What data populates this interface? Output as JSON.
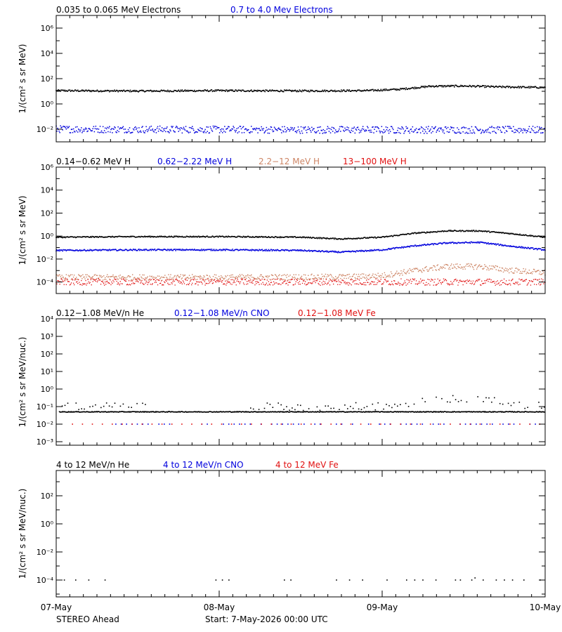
{
  "colors": {
    "black": "#000000",
    "blue": "#0000dd",
    "tan": "#cd8565",
    "red": "#e01010"
  },
  "footer": {
    "left": "STEREO Ahead",
    "start": "Start:  7-May-2026 00:00 UTC"
  },
  "x_axis": {
    "ticks": [
      "07-May",
      "08-May",
      "09-May",
      "10-May"
    ],
    "range_days": [
      0,
      3
    ]
  },
  "chart_data": [
    {
      "type": "scatter",
      "ylabel": "1/(cm² s sr MeV)",
      "yscale": "log",
      "ylim_exp": [
        -3,
        7
      ],
      "yticks": [
        {
          "exp": -2,
          "label": "10⁻²"
        },
        {
          "exp": 0,
          "label": "10⁰"
        },
        {
          "exp": 2,
          "label": "10²"
        },
        {
          "exp": 4,
          "label": "10⁴"
        },
        {
          "exp": 6,
          "label": "10⁶"
        }
      ],
      "legend": [
        {
          "name": "0.035 to 0.065 MeV Electrons",
          "color": "#000000"
        },
        {
          "name": "0.7 to 4.0 Mev Electrons",
          "color": "#0000dd"
        }
      ],
      "series": [
        {
          "name": "0.035 to 0.065 MeV Electrons",
          "color": "#000000",
          "style": "dense",
          "size": 1.6,
          "x_days": [
            0,
            0.5,
            1.0,
            1.5,
            1.9,
            2.1,
            2.3,
            2.5,
            2.7,
            3.0
          ],
          "y_log10": [
            1.05,
            1.02,
            1.05,
            1.03,
            1.05,
            1.15,
            1.4,
            1.42,
            1.35,
            1.3
          ],
          "jitter": 0.07
        },
        {
          "name": "0.7 to 4.0 Mev Electrons",
          "color": "#0000dd",
          "style": "dense",
          "size": 1.5,
          "x_days": [
            0,
            1.5,
            3.0
          ],
          "y_log10": [
            -2.0,
            -2.05,
            -2.05
          ],
          "jitter": 0.28
        }
      ]
    },
    {
      "type": "scatter",
      "ylabel": "1/(cm² s sr MeV)",
      "yscale": "log",
      "ylim_exp": [
        -5,
        6
      ],
      "yticks": [
        {
          "exp": -4,
          "label": "10⁻⁴"
        },
        {
          "exp": -2,
          "label": "10⁻²"
        },
        {
          "exp": 0,
          "label": "10⁰"
        },
        {
          "exp": 2,
          "label": "10²"
        },
        {
          "exp": 4,
          "label": "10⁴"
        },
        {
          "exp": 6,
          "label": "10⁶"
        }
      ],
      "legend": [
        {
          "name": "0.14−0.62 MeV H",
          "color": "#000000"
        },
        {
          "name": "0.62−2.22 MeV H",
          "color": "#0000dd"
        },
        {
          "name": "2.2−12 MeV H",
          "color": "#cd8565"
        },
        {
          "name": "13−100 MeV H",
          "color": "#e01010"
        }
      ],
      "series": [
        {
          "name": "0.14−0.62 MeV H",
          "color": "#000000",
          "style": "dense",
          "size": 1.6,
          "x_days": [
            0,
            0.5,
            1.0,
            1.5,
            1.75,
            2.0,
            2.2,
            2.4,
            2.6,
            2.8,
            3.0
          ],
          "y_log10": [
            -0.1,
            -0.05,
            -0.05,
            -0.1,
            -0.25,
            -0.1,
            0.25,
            0.45,
            0.45,
            0.2,
            -0.1
          ],
          "jitter": 0.05
        },
        {
          "name": "0.62−2.22 MeV H",
          "color": "#0000dd",
          "style": "dense",
          "size": 1.6,
          "x_days": [
            0,
            0.5,
            1.0,
            1.5,
            1.75,
            2.0,
            2.2,
            2.4,
            2.6,
            2.8,
            3.0
          ],
          "y_log10": [
            -1.25,
            -1.2,
            -1.2,
            -1.25,
            -1.4,
            -1.2,
            -0.85,
            -0.6,
            -0.55,
            -0.9,
            -1.2
          ],
          "jitter": 0.06
        },
        {
          "name": "2.2−12 MeV H",
          "color": "#cd8565",
          "style": "dense",
          "size": 1.4,
          "x_days": [
            0,
            1.0,
            1.8,
            2.0,
            2.2,
            2.4,
            2.6,
            2.8,
            3.0
          ],
          "y_log10": [
            -3.6,
            -3.6,
            -3.55,
            -3.45,
            -3.0,
            -2.65,
            -2.65,
            -3.0,
            -3.2
          ],
          "jitter": 0.25
        },
        {
          "name": "13−100 MeV H",
          "color": "#e01010",
          "style": "dense",
          "size": 1.3,
          "x_days": [
            0,
            1.5,
            3.0
          ],
          "y_log10": [
            -4.0,
            -4.0,
            -4.0
          ],
          "jitter": 0.28
        }
      ]
    },
    {
      "type": "scatter",
      "ylabel": "1/(cm² s sr MeV/nuc.)",
      "yscale": "log",
      "ylim_exp": [
        -3.2,
        4
      ],
      "yticks": [
        {
          "exp": -3,
          "label": "10⁻³"
        },
        {
          "exp": -2,
          "label": "10⁻²"
        },
        {
          "exp": -1,
          "label": "10⁻¹"
        },
        {
          "exp": 0,
          "label": "10⁰"
        },
        {
          "exp": 1,
          "label": "10¹"
        },
        {
          "exp": 2,
          "label": "10²"
        },
        {
          "exp": 3,
          "label": "10³"
        },
        {
          "exp": 4,
          "label": "10⁴"
        }
      ],
      "legend": [
        {
          "name": "0.12−1.08 MeV/n He",
          "color": "#000000"
        },
        {
          "name": "0.12−1.08 MeV/n CNO",
          "color": "#0000dd"
        },
        {
          "name": "0.12−1.08 MeV Fe",
          "color": "#e01010"
        }
      ],
      "series": [
        {
          "name": "0.12−1.08 MeV/n He (baseline)",
          "color": "#000000",
          "style": "sparse",
          "size": 1.6,
          "x_days": [
            0.02,
            3.0
          ],
          "y_log10": [
            -1.3,
            -1.3
          ],
          "jitter": 0.02,
          "step": 0.004
        },
        {
          "name": "0.12−1.08 MeV/n He (upper)",
          "color": "#000000",
          "style": "sparse",
          "size": 1.6,
          "x_days": [
            0.02,
            1.9,
            2.1,
            2.4,
            2.6,
            2.8,
            3.0
          ],
          "y_log10": [
            -1.0,
            -1.0,
            -0.95,
            -0.55,
            -0.55,
            -0.85,
            -1.0
          ],
          "jitter": 0.22,
          "step": 0.017
        },
        {
          "name": "0.12−1.08 MeV/n CNO",
          "color": "#0000dd",
          "style": "sparse",
          "size": 1.6,
          "x_days": [
            0.3,
            3.0
          ],
          "y_log10": [
            -2.0,
            -2.0
          ],
          "jitter": 0,
          "step": 0.033
        },
        {
          "name": "0.12−1.08 MeV Fe",
          "color": "#e01010",
          "style": "sparse",
          "size": 1.6,
          "x_days": [
            0.1,
            3.0
          ],
          "y_log10": [
            -2.0,
            -2.0
          ],
          "jitter": 0,
          "step": 0.061
        }
      ]
    },
    {
      "type": "scatter",
      "ylabel": "1/(cm² s sr MeV/nuc.)",
      "yscale": "log",
      "ylim_exp": [
        -5.2,
        3.8
      ],
      "yticks": [
        {
          "exp": -4,
          "label": "10⁻⁴"
        },
        {
          "exp": -2,
          "label": "10⁻²"
        },
        {
          "exp": 0,
          "label": "10⁰"
        },
        {
          "exp": 2,
          "label": "10²"
        }
      ],
      "legend": [
        {
          "name": "4 to 12 MeV/n He",
          "color": "#000000"
        },
        {
          "name": "4 to 12 MeV/n CNO",
          "color": "#0000dd"
        },
        {
          "name": "4 to 12 MeV Fe",
          "color": "#e01010"
        }
      ],
      "series": [
        {
          "name": "4 to 12 MeV/n He",
          "color": "#000000",
          "style": "points",
          "size": 1.6,
          "points": [
            [
              0.05,
              -4
            ],
            [
              0.12,
              -4
            ],
            [
              0.2,
              -4
            ],
            [
              0.3,
              -4
            ],
            [
              0.98,
              -4
            ],
            [
              1.02,
              -4
            ],
            [
              1.06,
              -4
            ],
            [
              1.4,
              -4
            ],
            [
              1.44,
              -4
            ],
            [
              1.72,
              -4
            ],
            [
              1.8,
              -4
            ],
            [
              1.88,
              -4
            ],
            [
              2.03,
              -4
            ],
            [
              2.15,
              -4
            ],
            [
              2.2,
              -4
            ],
            [
              2.25,
              -4
            ],
            [
              2.33,
              -4
            ],
            [
              2.45,
              -4
            ],
            [
              2.48,
              -4
            ],
            [
              2.55,
              -4
            ],
            [
              2.57,
              -3.85
            ],
            [
              2.62,
              -4
            ],
            [
              2.7,
              -4
            ],
            [
              2.75,
              -4
            ],
            [
              2.8,
              -4
            ],
            [
              2.87,
              -4
            ],
            [
              2.97,
              -4
            ]
          ]
        }
      ]
    }
  ]
}
